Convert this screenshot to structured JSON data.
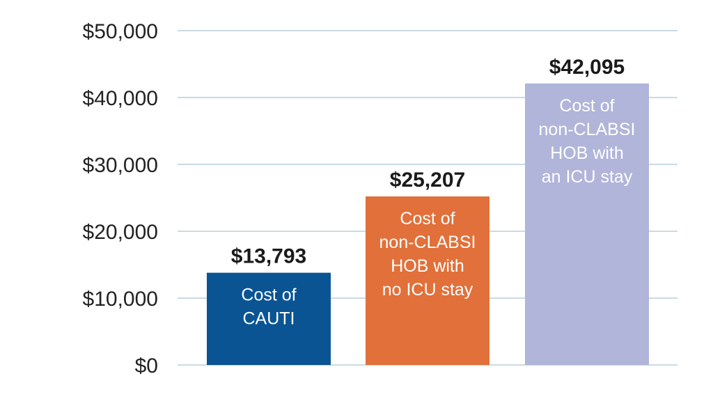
{
  "chart_data": {
    "type": "bar",
    "categories": [
      "Cost of CAUTI",
      "Cost of non-CLABSI HOB with no ICU stay",
      "Cost of non-CLABSI HOB with an ICU stay"
    ],
    "bar_text_lines": [
      [
        "Cost of",
        "CAUTI"
      ],
      [
        "Cost of",
        "non-CLABSI",
        "HOB with",
        "no ICU stay"
      ],
      [
        "Cost of",
        "non-CLABSI",
        "HOB with",
        "an ICU stay"
      ]
    ],
    "values": [
      13793,
      25207,
      42095
    ],
    "value_labels": [
      "$13,793",
      "$25,207",
      "$42,095"
    ],
    "colors": [
      "#0a5494",
      "#e2703a",
      "#b0b5d9"
    ],
    "ylim": [
      0,
      50000
    ],
    "yticks": [
      0,
      10000,
      20000,
      30000,
      40000,
      50000
    ],
    "ytick_labels": [
      "$0",
      "$10,000",
      "$20,000",
      "$30,000",
      "$40,000",
      "$50,000"
    ],
    "grid": true,
    "legend": "none",
    "title": "",
    "xlabel": "",
    "ylabel": ""
  }
}
